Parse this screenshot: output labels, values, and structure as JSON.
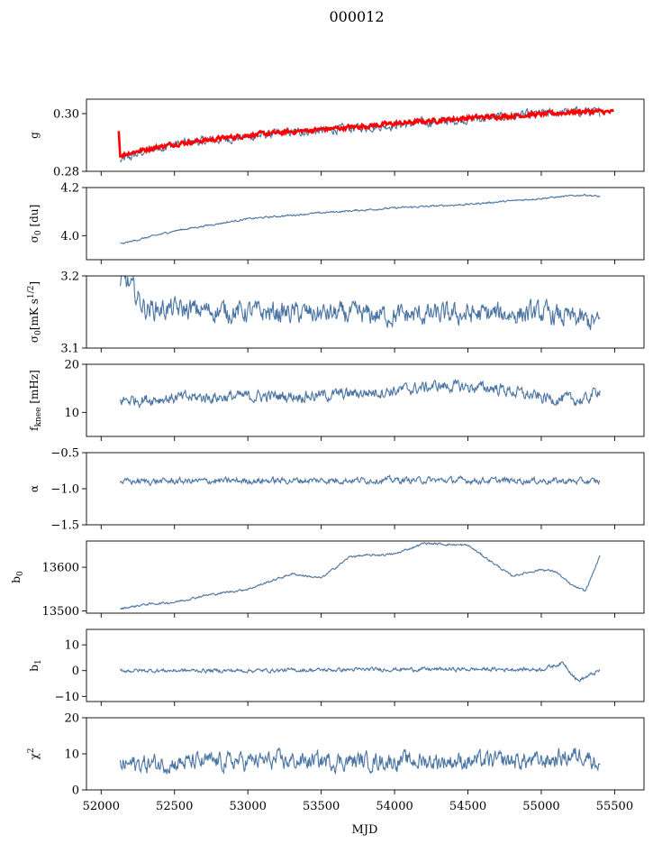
{
  "title": "000012",
  "xlabel": "MJD",
  "x_ticks": [
    52000,
    52500,
    53000,
    53500,
    54000,
    54500,
    55000,
    55500
  ],
  "xlim": [
    51900,
    55700
  ],
  "colors": {
    "series": "#4a74a2",
    "model": "#ff0000",
    "axes": "#000000"
  },
  "chart_data": [
    {
      "type": "line",
      "ylabel": "g",
      "ylim": [
        0.28,
        0.305
      ],
      "y_ticks": [
        0.28,
        0.3
      ],
      "y_tick_labels": [
        "0.28",
        "0.30"
      ],
      "series": [
        {
          "role": "data",
          "color": "#4a74a2",
          "x": [
            52130,
            52180,
            52300,
            52500,
            52700,
            53000,
            53300,
            53600,
            54000,
            54500,
            55000,
            55300,
            55400
          ],
          "y": [
            0.2835,
            0.2845,
            0.287,
            0.2895,
            0.2905,
            0.292,
            0.2935,
            0.2945,
            0.296,
            0.298,
            0.3,
            0.3008,
            0.3002
          ],
          "noise": 0.0012
        },
        {
          "role": "fit",
          "color": "#ff0000",
          "x": [
            52120,
            52130,
            52200,
            52500,
            53000,
            53500,
            54000,
            54500,
            55000,
            55300,
            55490
          ],
          "y": [
            0.294,
            0.2855,
            0.2865,
            0.2895,
            0.2925,
            0.2945,
            0.2965,
            0.2985,
            0.2998,
            0.3008,
            0.3005
          ],
          "noise": 0.0006
        }
      ]
    },
    {
      "type": "line",
      "ylabel": "σ0 [du]",
      "ylim": [
        3.9,
        4.2
      ],
      "y_ticks": [
        4.0,
        4.2
      ],
      "y_tick_labels": [
        "4.0",
        "4.2"
      ],
      "series": [
        {
          "role": "data",
          "color": "#4a74a2",
          "x": [
            52130,
            52500,
            53000,
            53500,
            54000,
            54500,
            55000,
            55300,
            55400
          ],
          "y": [
            3.965,
            4.02,
            4.07,
            4.095,
            4.115,
            4.13,
            4.155,
            4.17,
            4.162
          ],
          "noise": 0.003
        }
      ]
    },
    {
      "type": "line",
      "ylabel": "σ0[mK s^1/2]",
      "ylim": [
        3.1,
        3.2
      ],
      "y_ticks": [
        3.1,
        3.2
      ],
      "y_tick_labels": [
        "3.1",
        "3.2"
      ],
      "series": [
        {
          "role": "data",
          "color": "#4a74a2",
          "x": [
            52130,
            52160,
            52200,
            52300,
            53000,
            54000,
            55000,
            55400
          ],
          "y": [
            3.185,
            3.195,
            3.185,
            3.155,
            3.15,
            3.145,
            3.148,
            3.135
          ],
          "noise": 0.012
        }
      ]
    },
    {
      "type": "line",
      "ylabel": "fknee [mHz]",
      "ylim": [
        5,
        20
      ],
      "y_ticks": [
        10,
        20
      ],
      "y_tick_labels": [
        "10",
        "20"
      ],
      "series": [
        {
          "role": "data",
          "color": "#4a74a2",
          "x": [
            52130,
            52500,
            53000,
            53500,
            54000,
            54300,
            54700,
            55000,
            55300,
            55400
          ],
          "y": [
            12.5,
            13,
            13.3,
            13.5,
            14.5,
            15.5,
            15,
            13,
            12.5,
            15
          ],
          "noise": 1.0
        }
      ]
    },
    {
      "type": "line",
      "ylabel": "α",
      "ylim": [
        -1.5,
        -0.5
      ],
      "y_ticks": [
        -1.5,
        -1.0,
        -0.5
      ],
      "y_tick_labels": [
        "−1.5",
        "−1.0",
        "−0.5"
      ],
      "series": [
        {
          "role": "data",
          "color": "#4a74a2",
          "x": [
            52130,
            53000,
            54000,
            55000,
            55400
          ],
          "y": [
            -0.9,
            -0.89,
            -0.88,
            -0.89,
            -0.9
          ],
          "noise": 0.035
        }
      ]
    },
    {
      "type": "line",
      "ylabel": "b0",
      "ylim": [
        13495,
        13660
      ],
      "y_ticks": [
        13500,
        13600
      ],
      "y_tick_labels": [
        "13500",
        "13600"
      ],
      "series": [
        {
          "role": "data",
          "color": "#4a74a2",
          "x": [
            52130,
            52300,
            52500,
            52700,
            53000,
            53300,
            53500,
            53700,
            54000,
            54200,
            54500,
            54800,
            55000,
            55100,
            55200,
            55300,
            55400
          ],
          "y": [
            13505,
            13515,
            13520,
            13535,
            13550,
            13585,
            13575,
            13625,
            13630,
            13655,
            13650,
            13580,
            13595,
            13590,
            13560,
            13545,
            13625
          ],
          "noise": 2
        }
      ]
    },
    {
      "type": "line",
      "ylabel": "b1",
      "ylim": [
        -12,
        16
      ],
      "y_ticks": [
        -10,
        0,
        10
      ],
      "y_tick_labels": [
        "−10",
        "0",
        "10"
      ],
      "series": [
        {
          "role": "data",
          "color": "#4a74a2",
          "x": [
            52130,
            53000,
            54000,
            55000,
            55150,
            55250,
            55400
          ],
          "y": [
            0,
            0,
            0.5,
            0.5,
            3,
            -4,
            0
          ],
          "noise": 0.6
        }
      ]
    },
    {
      "type": "line",
      "ylabel": "χ2",
      "ylim": [
        0,
        20
      ],
      "y_ticks": [
        0,
        10,
        20
      ],
      "y_tick_labels": [
        "0",
        "10",
        "20"
      ],
      "series": [
        {
          "role": "data",
          "color": "#4a74a2",
          "x": [
            52130,
            53000,
            54000,
            55000,
            55300,
            55400
          ],
          "y": [
            7,
            8,
            8,
            8,
            10,
            7
          ],
          "noise": 2.0
        }
      ]
    }
  ]
}
